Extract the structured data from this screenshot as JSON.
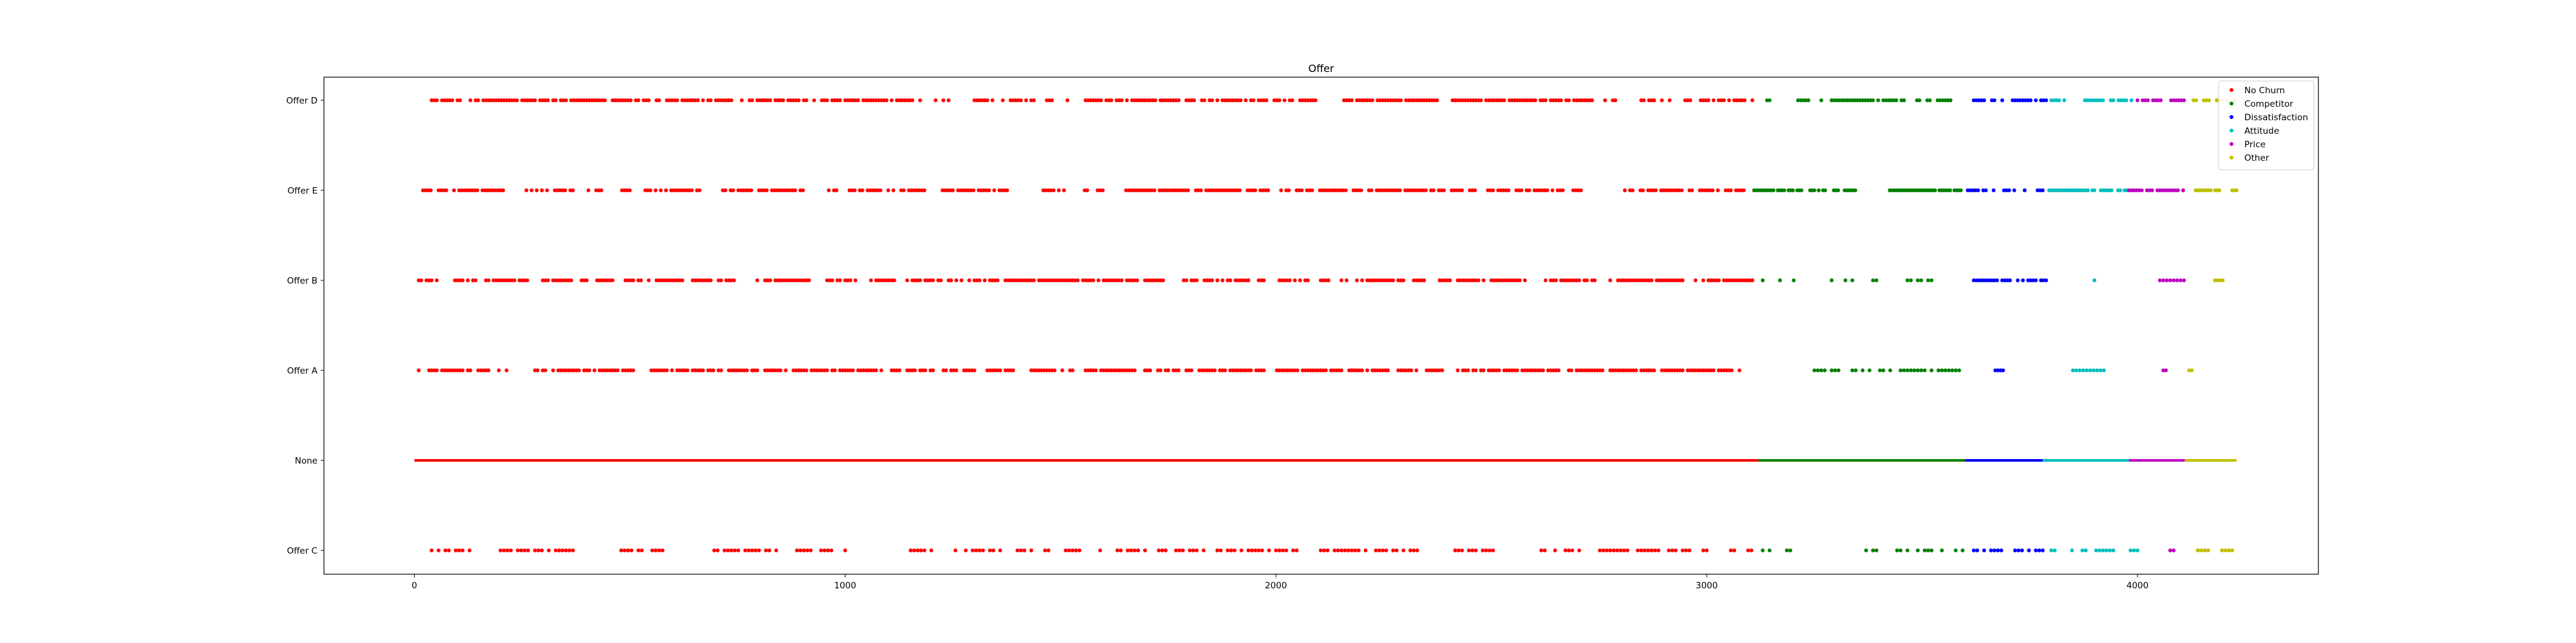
{
  "chart_data": {
    "type": "scatter",
    "title": "Offer",
    "xlabel": "",
    "ylabel": "",
    "xlim": [
      -210,
      4420
    ],
    "x_ticks": [
      0,
      1000,
      2000,
      3000,
      4000
    ],
    "x_tick_labels": [
      "0",
      "1000",
      "2000",
      "3000",
      "4000"
    ],
    "categories": [
      "Offer C",
      "None",
      "Offer A",
      "Offer B",
      "Offer E",
      "Offer D"
    ],
    "grid": false,
    "legend_position": "top-right",
    "series": [
      {
        "name": "No Churn",
        "color": "#ff0000",
        "segments": [
          {
            "category": "Offer D",
            "x_range": [
              40,
              3110
            ],
            "density": "medium"
          },
          {
            "category": "Offer E",
            "x_range": [
              20,
              3090
            ],
            "density": "medium"
          },
          {
            "category": "Offer B",
            "x_range": [
              10,
              3110
            ],
            "density": "medium"
          },
          {
            "category": "Offer A",
            "x_range": [
              10,
              3080
            ],
            "density": "medium"
          },
          {
            "category": "None",
            "x_range": [
              0,
              3120
            ],
            "density": "continuous"
          },
          {
            "category": "Offer C",
            "x_range": [
              0,
              3110
            ],
            "density": "sparse"
          }
        ]
      },
      {
        "name": "Competitor",
        "color": "#008000",
        "segments": [
          {
            "category": "Offer D",
            "x_range": [
              3140,
              3570
            ],
            "density": "medium"
          },
          {
            "category": "Offer E",
            "x_range": [
              3110,
              3590
            ],
            "density": "dense"
          },
          {
            "category": "Offer B",
            "x_range": [
              3130,
              3570
            ],
            "density": "sparse"
          },
          {
            "category": "Offer A",
            "x_range": [
              3250,
              3590
            ],
            "density": "sparse"
          },
          {
            "category": "None",
            "x_range": [
              3120,
              3600
            ],
            "density": "continuous"
          },
          {
            "category": "Offer C",
            "x_range": [
              3130,
              3600
            ],
            "density": "sparse"
          }
        ]
      },
      {
        "name": "Dissatisfaction",
        "color": "#0000ff",
        "segments": [
          {
            "category": "Offer D",
            "x_range": [
              3620,
              3790
            ],
            "density": "medium"
          },
          {
            "category": "Offer E",
            "x_range": [
              3600,
              3780
            ],
            "density": "medium"
          },
          {
            "category": "Offer B",
            "x_range": [
              3620,
              3790
            ],
            "density": "medium"
          },
          {
            "category": "Offer A",
            "x_range": [
              3670,
              3690
            ],
            "density": "sparse"
          },
          {
            "category": "None",
            "x_range": [
              3600,
              3780
            ],
            "density": "continuous"
          },
          {
            "category": "Offer C",
            "x_range": [
              3620,
              3780
            ],
            "density": "sparse"
          }
        ]
      },
      {
        "name": "Attitude",
        "color": "#00bfbf",
        "segments": [
          {
            "category": "Offer D",
            "x_range": [
              3800,
              3990
            ],
            "density": "medium"
          },
          {
            "category": "Offer E",
            "x_range": [
              3780,
              3980
            ],
            "density": "dense"
          },
          {
            "category": "Offer B",
            "x_range": [
              3900,
              3950
            ],
            "density": "sparse"
          },
          {
            "category": "Offer A",
            "x_range": [
              3810,
              3940
            ],
            "density": "sparse"
          },
          {
            "category": "None",
            "x_range": [
              3780,
              3980
            ],
            "density": "continuous"
          },
          {
            "category": "Offer C",
            "x_range": [
              3800,
              4000
            ],
            "density": "sparse"
          }
        ]
      },
      {
        "name": "Price",
        "color": "#bf00bf",
        "segments": [
          {
            "category": "Offer D",
            "x_range": [
              4000,
              4110
            ],
            "density": "medium"
          },
          {
            "category": "Offer E",
            "x_range": [
              3980,
              4110
            ],
            "density": "medium"
          },
          {
            "category": "Offer B",
            "x_range": [
              4020,
              4110
            ],
            "density": "sparse"
          },
          {
            "category": "Offer A",
            "x_range": [
              4060,
              4070
            ],
            "density": "sparse"
          },
          {
            "category": "None",
            "x_range": [
              3980,
              4110
            ],
            "density": "continuous"
          },
          {
            "category": "Offer C",
            "x_range": [
              4020,
              4110
            ],
            "density": "sparse"
          }
        ]
      },
      {
        "name": "Other",
        "color": "#bfbf00",
        "segments": [
          {
            "category": "Offer D",
            "x_range": [
              4130,
              4230
            ],
            "density": "medium"
          },
          {
            "category": "Offer E",
            "x_range": [
              4130,
              4230
            ],
            "density": "dense"
          },
          {
            "category": "Offer B",
            "x_range": [
              4180,
              4200
            ],
            "density": "sparse"
          },
          {
            "category": "Offer A",
            "x_range": [
              4120,
              4130
            ],
            "density": "sparse"
          },
          {
            "category": "None",
            "x_range": [
              4110,
              4230
            ],
            "density": "continuous"
          },
          {
            "category": "Offer C",
            "x_range": [
              4140,
              4230
            ],
            "density": "sparse"
          }
        ]
      }
    ]
  }
}
